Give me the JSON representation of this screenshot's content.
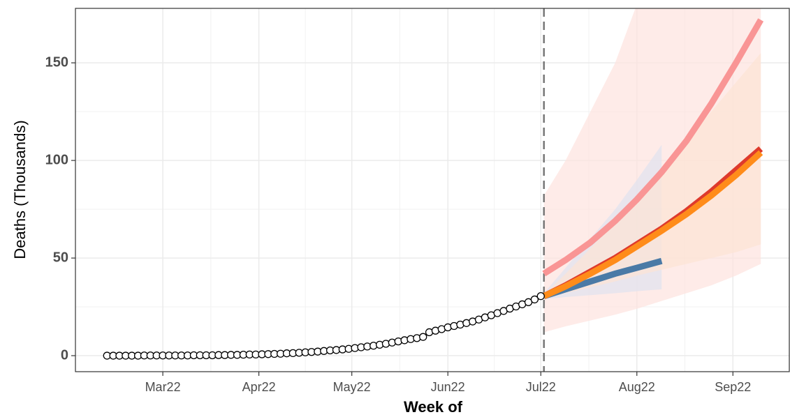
{
  "chart_data": {
    "type": "line",
    "x_label": "Week of",
    "y_label": "Deaths (Thousands)",
    "xlim": [
      -28.2,
      202.2
    ],
    "ylim": [
      -8.2,
      177.9
    ],
    "xticks": [
      {
        "value": 0,
        "label": "Mar22"
      },
      {
        "value": 31,
        "label": "Apr22"
      },
      {
        "value": 61,
        "label": "May22"
      },
      {
        "value": 92,
        "label": "Jun22"
      },
      {
        "value": 122,
        "label": "Jul22"
      },
      {
        "value": 153,
        "label": "Aug22"
      },
      {
        "value": 184,
        "label": "Sep22"
      }
    ],
    "yticks": [
      0,
      50,
      100,
      150
    ],
    "grid": true,
    "vline": 123,
    "observed": {
      "x": [
        -18,
        -16,
        -14,
        -12,
        -10,
        -8,
        -6,
        -4,
        -2,
        0,
        2,
        4,
        6,
        8,
        10,
        12,
        14,
        16,
        18,
        20,
        22,
        24,
        26,
        28,
        30,
        32,
        34,
        36,
        38,
        40,
        42,
        44,
        46,
        48,
        50,
        52,
        54,
        56,
        58,
        60,
        62,
        64,
        66,
        68,
        70,
        72,
        74,
        76,
        78,
        80,
        82,
        84,
        86,
        88,
        90,
        92,
        94,
        96,
        98,
        100,
        102,
        104,
        106,
        108,
        110,
        112,
        114,
        116,
        118,
        120,
        122
      ],
      "values": [
        0,
        0,
        0,
        0,
        0,
        0,
        0.1,
        0.1,
        0.1,
        0.1,
        0.1,
        0.1,
        0.1,
        0.1,
        0.2,
        0.2,
        0.2,
        0.2,
        0.3,
        0.3,
        0.4,
        0.4,
        0.5,
        0.6,
        0.6,
        0.7,
        0.8,
        0.9,
        1.0,
        1.2,
        1.3,
        1.5,
        1.7,
        1.9,
        2.1,
        2.4,
        2.7,
        2.9,
        3.2,
        3.5,
        3.9,
        4.3,
        4.7,
        5.1,
        5.6,
        6.1,
        6.7,
        7.3,
        7.9,
        8.5,
        9.0,
        9.6,
        12.0,
        12.8,
        13.6,
        14.5,
        15.2,
        15.9,
        16.7,
        17.5,
        18.5,
        19.6,
        20.7,
        21.8,
        22.9,
        24.1,
        25.2,
        26.3,
        27.4,
        28.8,
        30.5
      ]
    },
    "projection_x": [
      123,
      130,
      138,
      146,
      153,
      161,
      169,
      177,
      185,
      193
    ],
    "series": [
      {
        "color": "#f99595",
        "band_color": "#fde3de",
        "values": [
          42,
          49,
          58,
          69,
          80,
          94,
          110,
          129,
          150,
          172
        ],
        "lower": [
          12,
          15,
          18,
          21,
          24,
          28,
          32,
          36,
          41,
          47
        ],
        "upper": [
          82,
          100,
          125,
          150,
          180,
          210,
          240,
          270,
          300,
          330
        ]
      },
      {
        "color": "#4a7aa6",
        "band_color": "#dfe3ef",
        "values": [
          30.5,
          34,
          38,
          42,
          45,
          48.5,
          null,
          null,
          null,
          null
        ],
        "lower": [
          29,
          30,
          31,
          32,
          33,
          34,
          null,
          null,
          null,
          null
        ],
        "upper": [
          32,
          45,
          60,
          75,
          90,
          108,
          null,
          null,
          null,
          null
        ]
      },
      {
        "color": "#de3a2c",
        "band_color": "#fce4d4",
        "values": [
          30.5,
          36,
          43,
          50,
          57,
          65,
          74,
          84,
          95,
          106
        ],
        "lower": [
          30,
          32,
          35,
          38,
          41,
          44,
          47,
          50,
          53,
          57
        ],
        "upper": [
          31,
          42,
          55,
          68,
          82,
          96,
          110,
          125,
          140,
          155
        ]
      },
      {
        "color": "#ff8c1a",
        "values": [
          30.5,
          35.5,
          42,
          49,
          56,
          64,
          72.5,
          82,
          92.5,
          104
        ]
      }
    ]
  }
}
